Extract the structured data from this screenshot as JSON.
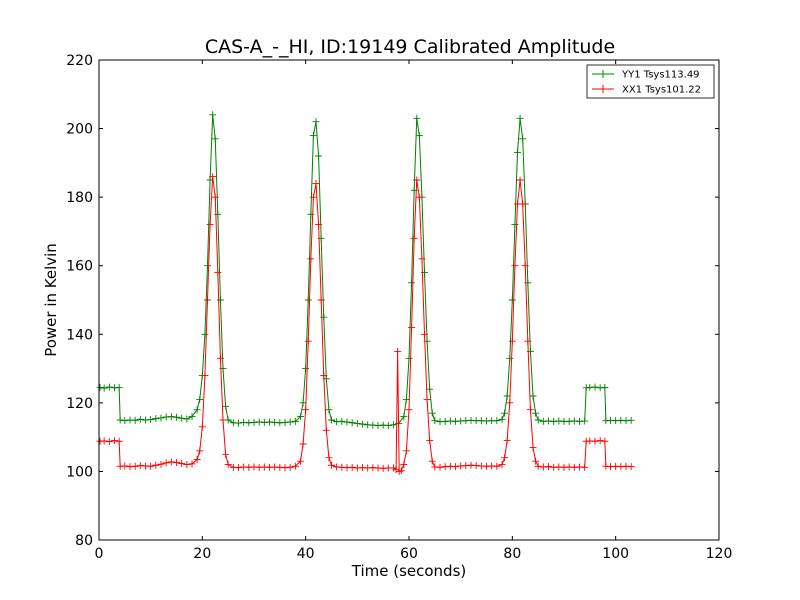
{
  "chart_data": {
    "type": "line",
    "title": "CAS-A_-_HI, ID:19149 Calibrated Amplitude",
    "xlabel": "Time (seconds)",
    "ylabel": "Power in Kelvin",
    "xlim": [
      0,
      120
    ],
    "ylim": [
      80,
      220
    ],
    "xticks": [
      0,
      20,
      40,
      60,
      80,
      100,
      120
    ],
    "yticks": [
      80,
      100,
      120,
      140,
      160,
      180,
      200,
      220
    ],
    "grid": false,
    "legend_position": "top-right",
    "series": [
      {
        "name": "YY1 Tsys113.49",
        "color": "#008000",
        "marker": "+",
        "points": [
          [
            0.2,
            124.5
          ],
          [
            1,
            124.3
          ],
          [
            2,
            124.6
          ],
          [
            3,
            124.4
          ],
          [
            3.9,
            124.5
          ],
          [
            4.1,
            115
          ],
          [
            5,
            114.8
          ],
          [
            6,
            115
          ],
          [
            7,
            114.9
          ],
          [
            8,
            115.2
          ],
          [
            9,
            115
          ],
          [
            10,
            115.1
          ],
          [
            11,
            115.4
          ],
          [
            12,
            115.6
          ],
          [
            13,
            115.9
          ],
          [
            14,
            116
          ],
          [
            15,
            115.8
          ],
          [
            16,
            115.5
          ],
          [
            17,
            115.3
          ],
          [
            18,
            116
          ],
          [
            19,
            118
          ],
          [
            19.5,
            121
          ],
          [
            20,
            128
          ],
          [
            20.5,
            140
          ],
          [
            21,
            160
          ],
          [
            21.5,
            185
          ],
          [
            22,
            204
          ],
          [
            22.5,
            197
          ],
          [
            23,
            175
          ],
          [
            23.5,
            150
          ],
          [
            24,
            130
          ],
          [
            24.5,
            119
          ],
          [
            25,
            115
          ],
          [
            26,
            114.2
          ],
          [
            27,
            114.1
          ],
          [
            28,
            114.3
          ],
          [
            29,
            114.2
          ],
          [
            30,
            114.3
          ],
          [
            31,
            114.4
          ],
          [
            32,
            114.3
          ],
          [
            33,
            114.4
          ],
          [
            34,
            114.3
          ],
          [
            35,
            114.2
          ],
          [
            36,
            114.3
          ],
          [
            37,
            114.4
          ],
          [
            38,
            114.6
          ],
          [
            39,
            116
          ],
          [
            39.5,
            120
          ],
          [
            40,
            130
          ],
          [
            40.5,
            150
          ],
          [
            41,
            175
          ],
          [
            41.5,
            198
          ],
          [
            42,
            202
          ],
          [
            42.5,
            192
          ],
          [
            43,
            168
          ],
          [
            43.5,
            145
          ],
          [
            44,
            127
          ],
          [
            44.5,
            118
          ],
          [
            45,
            115
          ],
          [
            46,
            114.5
          ],
          [
            47,
            114.6
          ],
          [
            48,
            114.4
          ],
          [
            49,
            114.2
          ],
          [
            50,
            114
          ],
          [
            51,
            113.8
          ],
          [
            52,
            113.6
          ],
          [
            53,
            113.5
          ],
          [
            54,
            113.4
          ],
          [
            55,
            113.5
          ],
          [
            56,
            113.4
          ],
          [
            57,
            113.6
          ],
          [
            58,
            114
          ],
          [
            59,
            116
          ],
          [
            59.5,
            121
          ],
          [
            60,
            133
          ],
          [
            60.5,
            155
          ],
          [
            61,
            182
          ],
          [
            61.5,
            203
          ],
          [
            62,
            198
          ],
          [
            62.5,
            180
          ],
          [
            63,
            158
          ],
          [
            63.5,
            138
          ],
          [
            64,
            124
          ],
          [
            64.5,
            117
          ],
          [
            65,
            114.8
          ],
          [
            66,
            114.5
          ],
          [
            67,
            114.6
          ],
          [
            68,
            114.7
          ],
          [
            69,
            114.6
          ],
          [
            70,
            114.7
          ],
          [
            71,
            114.8
          ],
          [
            72,
            114.9
          ],
          [
            73,
            114.8
          ],
          [
            74,
            114.8
          ],
          [
            75,
            114.7
          ],
          [
            76,
            114.8
          ],
          [
            77,
            114.8
          ],
          [
            78,
            115.2
          ],
          [
            78.5,
            117
          ],
          [
            79,
            122
          ],
          [
            79.5,
            133
          ],
          [
            80,
            150
          ],
          [
            80.5,
            172
          ],
          [
            81,
            193
          ],
          [
            81.5,
            203
          ],
          [
            82,
            197
          ],
          [
            82.5,
            178
          ],
          [
            83,
            155
          ],
          [
            83.5,
            135
          ],
          [
            84,
            122
          ],
          [
            84.5,
            117
          ],
          [
            85,
            115
          ],
          [
            86,
            114.6
          ],
          [
            87,
            114.7
          ],
          [
            88,
            114.6
          ],
          [
            89,
            114.7
          ],
          [
            90,
            114.6
          ],
          [
            91,
            114.6
          ],
          [
            92,
            114.7
          ],
          [
            93,
            114.6
          ],
          [
            94,
            114.7
          ],
          [
            94.3,
            124.4
          ],
          [
            95,
            124.5
          ],
          [
            96,
            124.6
          ],
          [
            97,
            124.4
          ],
          [
            97.9,
            124.5
          ],
          [
            98.1,
            114.8
          ],
          [
            99,
            114.9
          ],
          [
            100,
            114.8
          ],
          [
            101,
            114.9
          ],
          [
            102,
            114.8
          ],
          [
            103,
            114.9
          ]
        ]
      },
      {
        "name": "XX1 Tsys101.22",
        "color": "#ff0000",
        "marker": "+",
        "points": [
          [
            0.2,
            108.8
          ],
          [
            1,
            108.9
          ],
          [
            2,
            108.7
          ],
          [
            3,
            109
          ],
          [
            3.9,
            108.8
          ],
          [
            4.1,
            101.5
          ],
          [
            5,
            101.6
          ],
          [
            6,
            101.4
          ],
          [
            7,
            101.5
          ],
          [
            8,
            101.7
          ],
          [
            9,
            101.6
          ],
          [
            10,
            101.5
          ],
          [
            11,
            101.8
          ],
          [
            12,
            102.1
          ],
          [
            13,
            102.5
          ],
          [
            14,
            102.8
          ],
          [
            15,
            102.6
          ],
          [
            16,
            102.3
          ],
          [
            17,
            102
          ],
          [
            18,
            102.2
          ],
          [
            19,
            103.5
          ],
          [
            19.5,
            106
          ],
          [
            20,
            113
          ],
          [
            20.5,
            128
          ],
          [
            21,
            150
          ],
          [
            21.5,
            172
          ],
          [
            22,
            186
          ],
          [
            22.5,
            180
          ],
          [
            23,
            158
          ],
          [
            23.5,
            133
          ],
          [
            24,
            115
          ],
          [
            24.5,
            105
          ],
          [
            25,
            102
          ],
          [
            26,
            101.2
          ],
          [
            27,
            101.1
          ],
          [
            28,
            101.3
          ],
          [
            29,
            101.2
          ],
          [
            30,
            101.3
          ],
          [
            31,
            101.2
          ],
          [
            32,
            101.3
          ],
          [
            33,
            101.2
          ],
          [
            34,
            101.3
          ],
          [
            35,
            101.2
          ],
          [
            36,
            101.1
          ],
          [
            37,
            101.2
          ],
          [
            38,
            101.5
          ],
          [
            39,
            103
          ],
          [
            39.5,
            108
          ],
          [
            40,
            118
          ],
          [
            40.5,
            138
          ],
          [
            41,
            162
          ],
          [
            41.5,
            180
          ],
          [
            42,
            184
          ],
          [
            42.5,
            172
          ],
          [
            43,
            150
          ],
          [
            43.5,
            128
          ],
          [
            44,
            112
          ],
          [
            44.5,
            104
          ],
          [
            45,
            101.8
          ],
          [
            46,
            101.3
          ],
          [
            47,
            101.2
          ],
          [
            48,
            101.1
          ],
          [
            49,
            101.2
          ],
          [
            50,
            101
          ],
          [
            51,
            101.1
          ],
          [
            52,
            101
          ],
          [
            53,
            101.1
          ],
          [
            54,
            101
          ],
          [
            55,
            100.9
          ],
          [
            56,
            101
          ],
          [
            57,
            101
          ],
          [
            57.5,
            100.5
          ],
          [
            57.8,
            135
          ],
          [
            58.1,
            100
          ],
          [
            58.5,
            100.2
          ],
          [
            59,
            102
          ],
          [
            59.5,
            106
          ],
          [
            60,
            118
          ],
          [
            60.5,
            142
          ],
          [
            61,
            168
          ],
          [
            61.5,
            185
          ],
          [
            62,
            180
          ],
          [
            62.5,
            162
          ],
          [
            63,
            140
          ],
          [
            63.5,
            121
          ],
          [
            64,
            109
          ],
          [
            64.5,
            103
          ],
          [
            65,
            101.3
          ],
          [
            66,
            101.2
          ],
          [
            67,
            101.4
          ],
          [
            68,
            101.5
          ],
          [
            69,
            101.4
          ],
          [
            70,
            101.6
          ],
          [
            71,
            101.7
          ],
          [
            72,
            101.8
          ],
          [
            73,
            101.7
          ],
          [
            74,
            101.6
          ],
          [
            75,
            101.5
          ],
          [
            76,
            101.6
          ],
          [
            77,
            101.5
          ],
          [
            78,
            102
          ],
          [
            78.5,
            104
          ],
          [
            79,
            109
          ],
          [
            79.5,
            120
          ],
          [
            80,
            138
          ],
          [
            80.5,
            160
          ],
          [
            81,
            178
          ],
          [
            81.5,
            185
          ],
          [
            82,
            178
          ],
          [
            82.5,
            160
          ],
          [
            83,
            138
          ],
          [
            83.5,
            118
          ],
          [
            84,
            107
          ],
          [
            84.5,
            103
          ],
          [
            85,
            101.5
          ],
          [
            86,
            101.3
          ],
          [
            87,
            101.4
          ],
          [
            88,
            101.2
          ],
          [
            89,
            101.3
          ],
          [
            90,
            101.2
          ],
          [
            91,
            101.3
          ],
          [
            92,
            101.2
          ],
          [
            93,
            101.3
          ],
          [
            94,
            101.2
          ],
          [
            94.3,
            108.8
          ],
          [
            95,
            108.9
          ],
          [
            96,
            108.8
          ],
          [
            97,
            109
          ],
          [
            97.9,
            108.8
          ],
          [
            98.1,
            101.5
          ],
          [
            99,
            101.4
          ],
          [
            100,
            101.5
          ],
          [
            101,
            101.4
          ],
          [
            102,
            101.5
          ],
          [
            103,
            101.4
          ]
        ]
      }
    ]
  }
}
